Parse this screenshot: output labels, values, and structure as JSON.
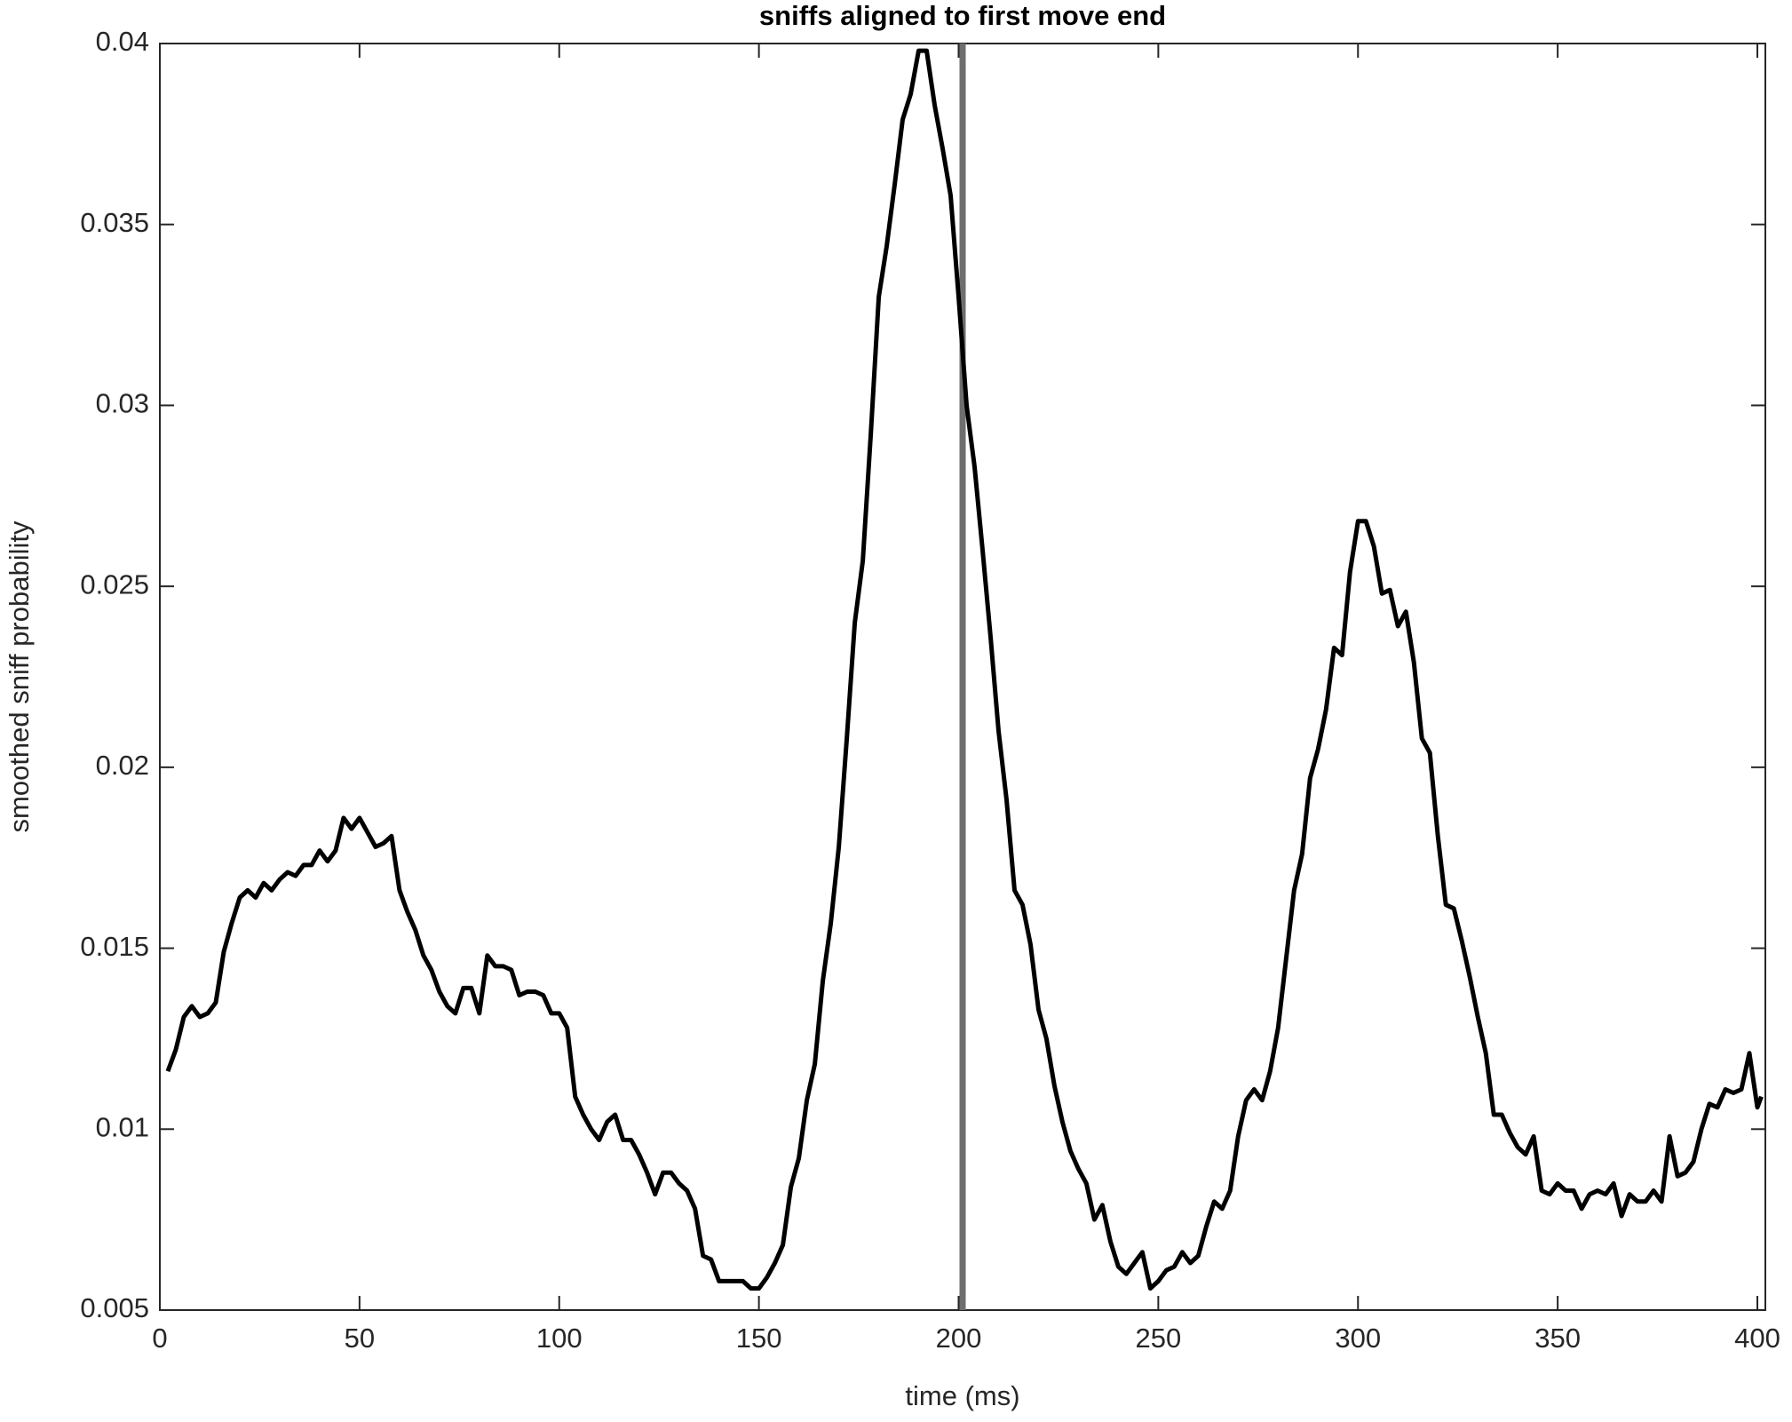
{
  "chart_data": {
    "type": "line",
    "title": "sniffs aligned to first move end",
    "x_label": "time (ms)",
    "y_label": "smoothed sniff probability",
    "color": "#000000",
    "vline": 201,
    "vline_color": "#6e6e6e",
    "xlim": [
      0,
      402
    ],
    "ylim": [
      0.005,
      0.04
    ],
    "xticks": [
      0,
      50,
      100,
      150,
      200,
      250,
      300,
      350,
      400
    ],
    "yticks": [
      0.005,
      0.01,
      0.015,
      0.02,
      0.025,
      0.03,
      0.035,
      0.04
    ],
    "x": [
      2,
      4,
      6,
      8,
      10,
      12,
      14,
      16,
      18,
      20,
      22,
      24,
      26,
      28,
      30,
      32,
      34,
      36,
      38,
      40,
      42,
      44,
      46,
      48,
      50,
      52,
      54,
      56,
      58,
      60,
      62,
      64,
      66,
      68,
      70,
      72,
      74,
      76,
      78,
      80,
      82,
      84,
      86,
      88,
      90,
      92,
      94,
      96,
      98,
      100,
      102,
      104,
      106,
      108,
      110,
      112,
      114,
      116,
      118,
      120,
      122,
      124,
      126,
      128,
      130,
      132,
      134,
      136,
      138,
      140,
      142,
      144,
      146,
      148,
      150,
      152,
      154,
      156,
      158,
      160,
      162,
      164,
      166,
      168,
      170,
      172,
      174,
      176,
      178,
      180,
      182,
      184,
      186,
      188,
      190,
      192,
      194,
      196,
      198,
      200,
      202,
      204,
      206,
      208,
      210,
      212,
      214,
      216,
      218,
      220,
      222,
      224,
      226,
      228,
      230,
      232,
      234,
      236,
      238,
      240,
      242,
      244,
      246,
      248,
      250,
      252,
      254,
      256,
      258,
      260,
      262,
      264,
      266,
      268,
      270,
      272,
      274,
      276,
      278,
      280,
      282,
      284,
      286,
      288,
      290,
      292,
      294,
      296,
      298,
      300,
      302,
      304,
      306,
      308,
      310,
      312,
      314,
      316,
      318,
      320,
      322,
      324,
      326,
      328,
      330,
      332,
      334,
      336,
      338,
      340,
      342,
      344,
      346,
      348,
      350,
      352,
      354,
      356,
      358,
      360,
      362,
      364,
      366,
      368,
      370,
      372,
      374,
      376,
      378,
      380,
      382,
      384,
      386,
      388,
      390,
      392,
      394,
      396,
      398,
      400,
      401
    ],
    "values": [
      0.0116,
      0.0122,
      0.0131,
      0.0134,
      0.0131,
      0.0132,
      0.0135,
      0.0149,
      0.0157,
      0.0164,
      0.0166,
      0.0164,
      0.0168,
      0.0166,
      0.0169,
      0.0171,
      0.017,
      0.0173,
      0.0173,
      0.0177,
      0.0174,
      0.0177,
      0.0186,
      0.0183,
      0.0186,
      0.0182,
      0.0178,
      0.0179,
      0.0181,
      0.0166,
      0.016,
      0.0155,
      0.0148,
      0.0144,
      0.0138,
      0.0134,
      0.0132,
      0.0139,
      0.0139,
      0.0132,
      0.0148,
      0.0145,
      0.0145,
      0.0144,
      0.0137,
      0.0138,
      0.0138,
      0.0137,
      0.0132,
      0.0132,
      0.0128,
      0.0109,
      0.0104,
      0.01,
      0.0097,
      0.0102,
      0.0104,
      0.0097,
      0.0097,
      0.0093,
      0.0088,
      0.0082,
      0.0088,
      0.0088,
      0.0085,
      0.0083,
      0.0078,
      0.0065,
      0.0064,
      0.0058,
      0.0058,
      0.0058,
      0.0058,
      0.0056,
      0.0056,
      0.0059,
      0.0063,
      0.0068,
      0.0084,
      0.0092,
      0.0108,
      0.0118,
      0.0141,
      0.0157,
      0.0178,
      0.0208,
      0.024,
      0.0257,
      0.0292,
      0.033,
      0.0344,
      0.0361,
      0.0379,
      0.0386,
      0.0398,
      0.0398,
      0.0383,
      0.0371,
      0.0358,
      0.033,
      0.03,
      0.0283,
      0.026,
      0.0236,
      0.021,
      0.0191,
      0.0166,
      0.0162,
      0.0151,
      0.0133,
      0.0125,
      0.0112,
      0.0102,
      0.0094,
      0.0089,
      0.0085,
      0.0075,
      0.0079,
      0.0069,
      0.0062,
      0.006,
      0.0063,
      0.0066,
      0.0056,
      0.0058,
      0.0061,
      0.0062,
      0.0066,
      0.0063,
      0.0065,
      0.0073,
      0.008,
      0.0078,
      0.0083,
      0.0098,
      0.0108,
      0.0111,
      0.0108,
      0.0116,
      0.0128,
      0.0147,
      0.0166,
      0.0176,
      0.0197,
      0.0205,
      0.0216,
      0.0233,
      0.0231,
      0.0254,
      0.0268,
      0.0268,
      0.0261,
      0.0248,
      0.0249,
      0.0239,
      0.0243,
      0.0229,
      0.0208,
      0.0204,
      0.0181,
      0.0162,
      0.0161,
      0.0152,
      0.0142,
      0.0131,
      0.0121,
      0.0104,
      0.0104,
      0.0099,
      0.0095,
      0.0093,
      0.0098,
      0.0083,
      0.0082,
      0.0085,
      0.0083,
      0.0083,
      0.0078,
      0.0082,
      0.0083,
      0.0082,
      0.0085,
      0.0076,
      0.0082,
      0.008,
      0.008,
      0.0083,
      0.008,
      0.0098,
      0.0087,
      0.0088,
      0.0091,
      0.01,
      0.0107,
      0.0106,
      0.0111,
      0.011,
      0.0111,
      0.0121,
      0.0106,
      0.0109
    ]
  }
}
